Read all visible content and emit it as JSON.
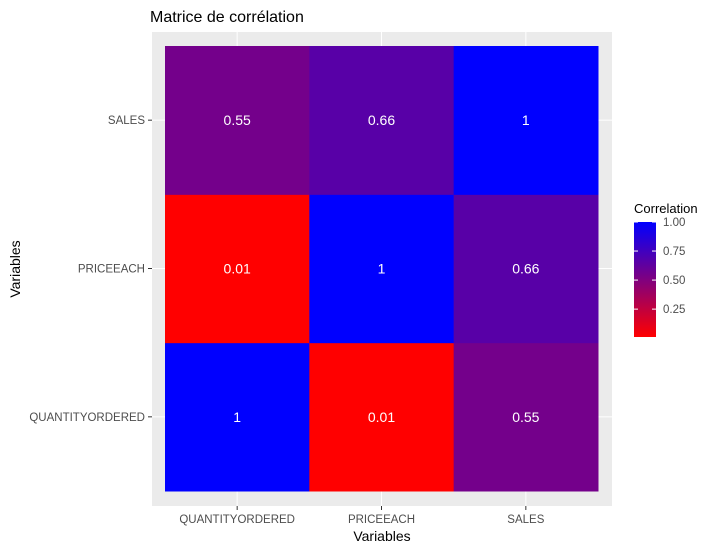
{
  "chart_data": {
    "type": "heatmap",
    "title": "Matrice de corrélation",
    "xlabel": "Variables",
    "ylabel": "Variables",
    "x_categories": [
      "QUANTITYORDERED",
      "PRICEEACH",
      "SALES"
    ],
    "y_categories": [
      "QUANTITYORDERED",
      "PRICEEACH",
      "SALES"
    ],
    "cells": [
      {
        "x": "QUANTITYORDERED",
        "y": "QUANTITYORDERED",
        "value": 1,
        "label": "1"
      },
      {
        "x": "PRICEEACH",
        "y": "QUANTITYORDERED",
        "value": 0.01,
        "label": "0.01"
      },
      {
        "x": "SALES",
        "y": "QUANTITYORDERED",
        "value": 0.55,
        "label": "0.55"
      },
      {
        "x": "QUANTITYORDERED",
        "y": "PRICEEACH",
        "value": 0.01,
        "label": "0.01"
      },
      {
        "x": "PRICEEACH",
        "y": "PRICEEACH",
        "value": 1,
        "label": "1"
      },
      {
        "x": "SALES",
        "y": "PRICEEACH",
        "value": 0.66,
        "label": "0.66"
      },
      {
        "x": "QUANTITYORDERED",
        "y": "SALES",
        "value": 0.55,
        "label": "0.55"
      },
      {
        "x": "PRICEEACH",
        "y": "SALES",
        "value": 0.66,
        "label": "0.66"
      },
      {
        "x": "SALES",
        "y": "SALES",
        "value": 1,
        "label": "1"
      }
    ],
    "legend": {
      "title": "Correlation",
      "ticks": [
        {
          "value": 1.0,
          "label": "1.00"
        },
        {
          "value": 0.75,
          "label": "0.75"
        },
        {
          "value": 0.5,
          "label": "0.50"
        },
        {
          "value": 0.25,
          "label": "0.25"
        }
      ],
      "placement": "right"
    },
    "color_scale": {
      "low": "#ff0000",
      "high": "#0000ff",
      "domain": [
        0.01,
        1
      ]
    },
    "grid": true,
    "colors": {
      "panel_background": "#ebebeb",
      "gridline": "#ffffff",
      "cell_text": "#ffffff"
    }
  }
}
